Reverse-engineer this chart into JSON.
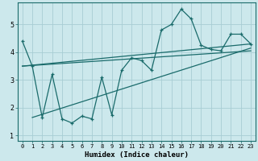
{
  "xlabel": "Humidex (Indice chaleur)",
  "bg_color": "#cce8ec",
  "line_color": "#1a6b6b",
  "grid_color": "#a8cdd4",
  "xlim": [
    -0.5,
    23.5
  ],
  "ylim": [
    0.8,
    5.8
  ],
  "xticks": [
    0,
    1,
    2,
    3,
    4,
    5,
    6,
    7,
    8,
    9,
    10,
    11,
    12,
    13,
    14,
    15,
    16,
    17,
    18,
    19,
    20,
    21,
    22,
    23
  ],
  "yticks": [
    1,
    2,
    3,
    4,
    5
  ],
  "jagged_x": [
    0,
    1,
    2,
    3,
    4,
    5,
    6,
    7,
    8,
    9,
    10,
    11,
    12,
    13,
    14,
    15,
    16,
    17,
    18,
    19,
    20,
    21,
    22,
    23
  ],
  "jagged_y": [
    4.4,
    3.5,
    1.65,
    3.2,
    1.6,
    1.45,
    1.7,
    1.6,
    3.1,
    1.75,
    3.35,
    3.8,
    3.7,
    3.35,
    4.8,
    5.0,
    5.55,
    5.2,
    4.25,
    4.1,
    4.05,
    4.65,
    4.65,
    4.3
  ],
  "trend1_x": [
    0,
    23
  ],
  "trend1_y": [
    3.5,
    4.05
  ],
  "trend2_x": [
    0,
    23
  ],
  "trend2_y": [
    3.5,
    4.3
  ],
  "trend3_x": [
    1,
    23
  ],
  "trend3_y": [
    1.65,
    4.15
  ]
}
